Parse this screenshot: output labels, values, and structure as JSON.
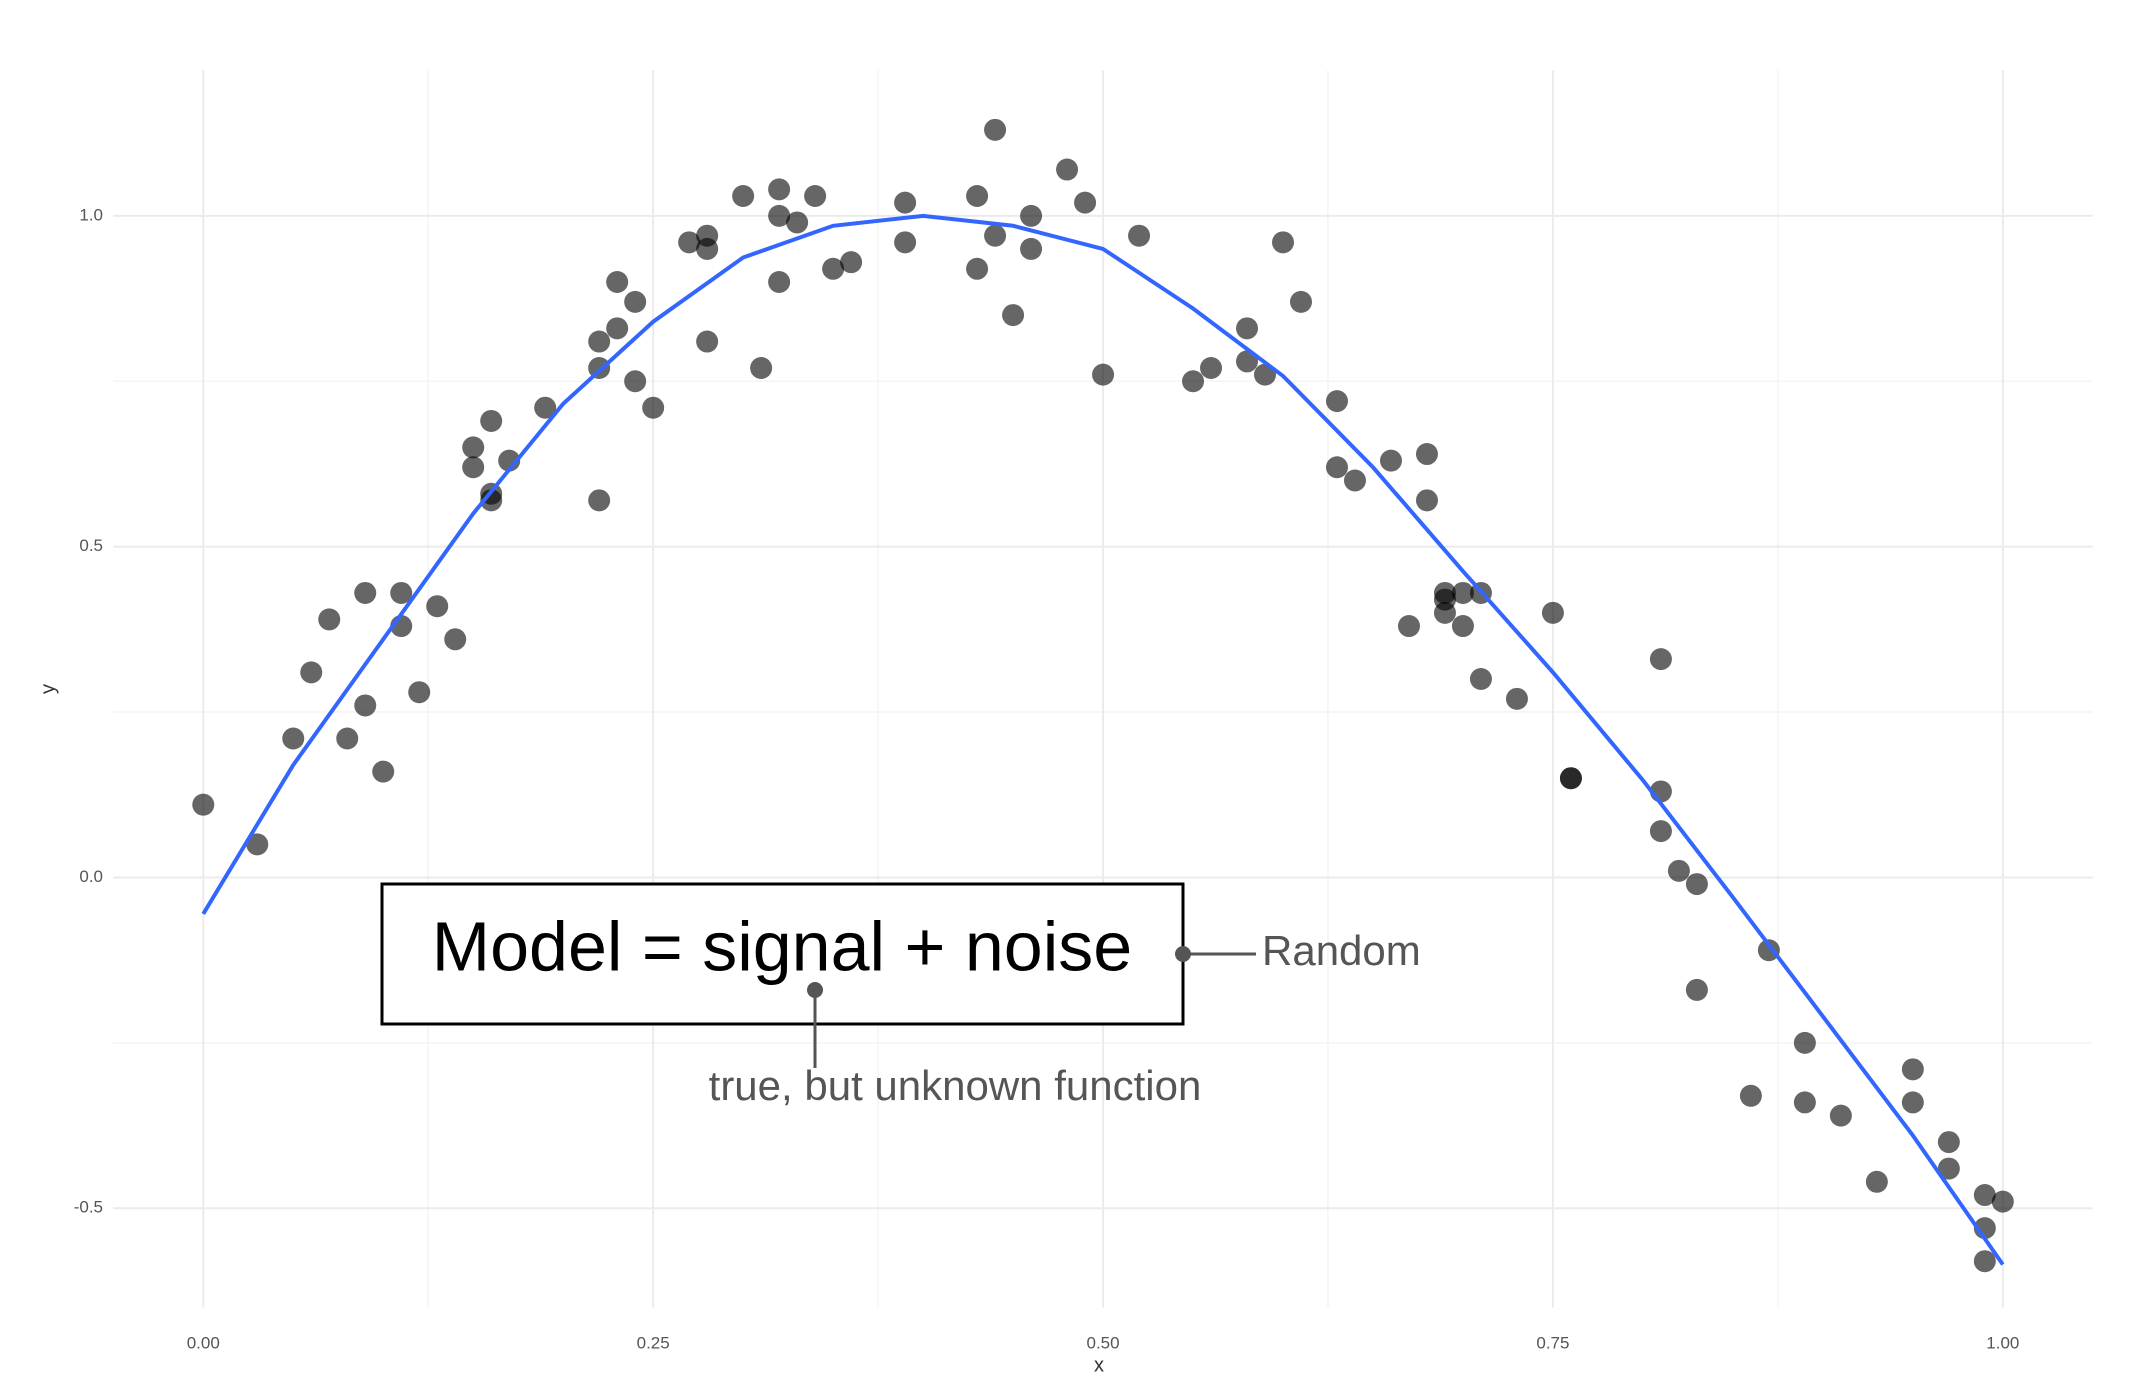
{
  "chart_data": {
    "type": "scatter",
    "x_label": "x",
    "y_label": "y",
    "x": [
      0.0,
      0.03,
      0.05,
      0.06,
      0.07,
      0.08,
      0.09,
      0.09,
      0.1,
      0.11,
      0.11,
      0.12,
      0.13,
      0.14,
      0.15,
      0.15,
      0.16,
      0.16,
      0.16,
      0.17,
      0.19,
      0.22,
      0.22,
      0.22,
      0.23,
      0.23,
      0.24,
      0.24,
      0.25,
      0.27,
      0.28,
      0.28,
      0.28,
      0.3,
      0.31,
      0.32,
      0.32,
      0.32,
      0.33,
      0.34,
      0.35,
      0.36,
      0.39,
      0.39,
      0.43,
      0.43,
      0.44,
      0.44,
      0.45,
      0.46,
      0.46,
      0.48,
      0.49,
      0.5,
      0.52,
      0.55,
      0.56,
      0.58,
      0.58,
      0.59,
      0.6,
      0.61,
      0.63,
      0.63,
      0.64,
      0.66,
      0.67,
      0.68,
      0.68,
      0.69,
      0.69,
      0.69,
      0.7,
      0.7,
      0.71,
      0.71,
      0.73,
      0.75,
      0.76,
      0.76,
      0.81,
      0.81,
      0.81,
      0.82,
      0.83,
      0.83,
      0.87,
      0.86,
      0.89,
      0.89,
      0.91,
      0.93,
      0.95,
      0.95,
      0.97,
      0.97,
      0.99,
      0.99,
      0.99,
      1.0
    ],
    "y": [
      0.11,
      0.05,
      0.21,
      0.31,
      0.39,
      0.21,
      0.26,
      0.43,
      0.16,
      0.38,
      0.43,
      0.28,
      0.41,
      0.36,
      0.65,
      0.62,
      0.58,
      0.57,
      0.69,
      0.63,
      0.71,
      0.81,
      0.77,
      0.57,
      0.83,
      0.9,
      0.75,
      0.87,
      0.71,
      0.96,
      0.81,
      0.97,
      0.95,
      1.03,
      0.77,
      0.9,
      1.04,
      1.0,
      0.99,
      1.03,
      0.92,
      0.93,
      1.02,
      0.96,
      1.03,
      0.92,
      0.97,
      1.13,
      0.85,
      1.0,
      0.95,
      1.07,
      1.02,
      0.76,
      0.97,
      0.75,
      0.77,
      0.83,
      0.78,
      0.76,
      0.96,
      0.87,
      0.72,
      0.62,
      0.6,
      0.63,
      0.38,
      0.57,
      0.64,
      0.4,
      0.42,
      0.43,
      0.38,
      0.43,
      0.43,
      0.3,
      0.27,
      0.4,
      0.15,
      0.15,
      0.33,
      0.07,
      0.13,
      0.01,
      -0.01,
      -0.17,
      -0.11,
      -0.33,
      -0.25,
      -0.34,
      -0.36,
      -0.46,
      -0.34,
      -0.29,
      -0.44,
      -0.4,
      -0.58,
      -0.48,
      -0.53,
      -0.49
    ],
    "color": "#000000",
    "curve": {
      "type": "line",
      "color": "#3366ff",
      "x": [
        0,
        0.05,
        0.1,
        0.15,
        0.2,
        0.25,
        0.3,
        0.35,
        0.4,
        0.45,
        0.5,
        0.55,
        0.6,
        0.65,
        0.7,
        0.75,
        0.8,
        0.85,
        0.9,
        0.95,
        1.0
      ],
      "y": [
        -0.055,
        0.17,
        0.36,
        0.55,
        0.716,
        0.84,
        0.937,
        0.985,
        1.0,
        0.985,
        0.95,
        0.86,
        0.758,
        0.62,
        0.463,
        0.31,
        0.147,
        -0.03,
        -0.21,
        -0.39,
        -0.585
      ]
    },
    "xlim": [
      -0.05,
      1.05
    ],
    "ylim": [
      -0.65,
      1.22
    ],
    "xticks": [
      {
        "value": 0,
        "label": "0.00"
      },
      {
        "value": 0.25,
        "label": "0.25"
      },
      {
        "value": 0.5,
        "label": "0.50"
      },
      {
        "value": 0.75,
        "label": "0.75"
      },
      {
        "value": 1,
        "label": "1.00"
      }
    ],
    "yticks": [
      -0.5,
      {
        "value": 0,
        "label": "0.0"
      },
      0.5,
      {
        "value": 1,
        "label": "1.0"
      }
    ],
    "minor_xticks": [
      0.125,
      0.375,
      0.625,
      0.875
    ],
    "minor_yticks": [
      -0.25,
      0.25,
      0.75
    ],
    "grid": true,
    "annotations": {
      "model": "Model = signal + noise",
      "random": "Random",
      "signal": "true, but unknown function"
    }
  }
}
